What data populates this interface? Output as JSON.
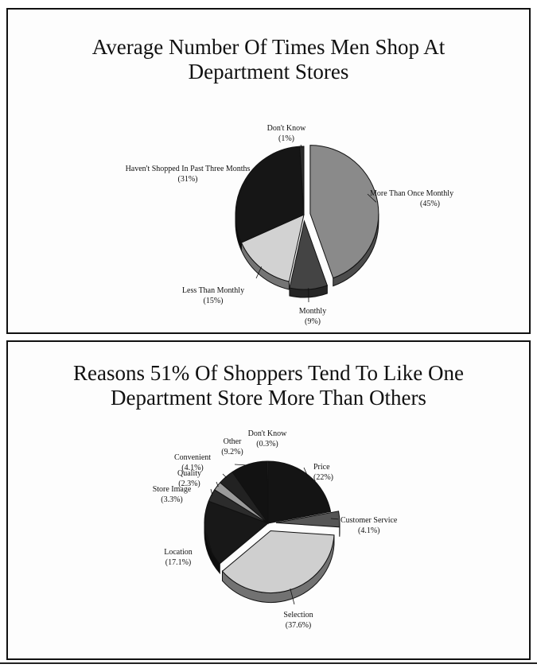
{
  "chart_data": [
    {
      "type": "pie",
      "title_lines": [
        "Average Number Of Times Men Shop At",
        "Department Stores"
      ],
      "slices": [
        {
          "label": "More Than Once Monthly",
          "value": 45,
          "value_label": "(45%)",
          "color": "#8a8a8a",
          "exploded": true
        },
        {
          "label": "Monthly",
          "value": 9,
          "value_label": "(9%)",
          "color": "#444444",
          "exploded": true
        },
        {
          "label": "Less Than Monthly",
          "value": 15,
          "value_label": "(15%)",
          "color": "#d2d2d2",
          "exploded": false
        },
        {
          "label": "Haven't Shopped In Past Three Months",
          "value": 31,
          "value_label": "(31%)",
          "color": "#161616",
          "exploded": false
        },
        {
          "label": "Don't Know",
          "value": 1,
          "value_label": "(1%)",
          "color": "#2a2a2a",
          "exploded": false
        }
      ]
    },
    {
      "type": "pie",
      "title_lines": [
        "Reasons 51% Of Shoppers Tend To Like One",
        "Department Store More Than Others"
      ],
      "slices": [
        {
          "label": "Price",
          "value": 22,
          "value_label": "(22%)",
          "color": "#141414",
          "exploded": false
        },
        {
          "label": "Customer Service",
          "value": 4.1,
          "value_label": "(4.1%)",
          "color": "#555555",
          "exploded": true
        },
        {
          "label": "Selection",
          "value": 37.6,
          "value_label": "(37.6%)",
          "color": "#cfcfcf",
          "exploded": true
        },
        {
          "label": "Location",
          "value": 17.1,
          "value_label": "(17.1%)",
          "color": "#181818",
          "exploded": false
        },
        {
          "label": "Store Image",
          "value": 3.3,
          "value_label": "(3.3%)",
          "color": "#2c2c2c",
          "exploded": false
        },
        {
          "label": "Quality",
          "value": 2.3,
          "value_label": "(2.3%)",
          "color": "#9a9a9a",
          "exploded": false
        },
        {
          "label": "Convenient",
          "value": 4.1,
          "value_label": "(4.1%)",
          "color": "#222222",
          "exploded": false
        },
        {
          "label": "Other",
          "value": 9.2,
          "value_label": "(9.2%)",
          "color": "#121212",
          "exploded": false
        },
        {
          "label": "Don't Know",
          "value": 0.3,
          "value_label": "(0.3%)",
          "color": "#333333",
          "exploded": false
        }
      ]
    }
  ]
}
